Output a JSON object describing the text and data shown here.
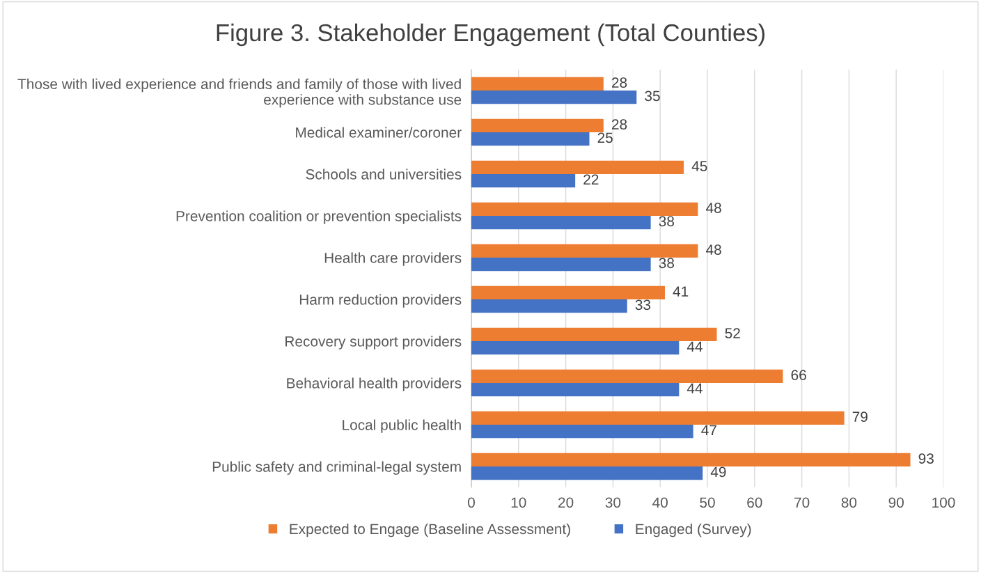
{
  "chart_data": {
    "type": "bar",
    "orientation": "horizontal",
    "title": "Figure 3. Stakeholder Engagement (Total Counties)",
    "categories": [
      "Those with lived experience and friends and family of those with lived experience with substance use",
      "Medical examiner/coroner",
      "Schools and universities",
      "Prevention coalition or prevention specialists",
      "Health care providers",
      "Harm reduction providers",
      "Recovery support providers",
      "Behavioral health providers",
      "Local public health",
      "Public safety and criminal-legal system"
    ],
    "series": [
      {
        "name": "Expected to Engage (Baseline Assessment)",
        "color": "#ed7d31",
        "values": [
          28,
          28,
          45,
          48,
          48,
          41,
          52,
          66,
          79,
          93
        ]
      },
      {
        "name": "Engaged (Survey)",
        "color": "#4472c4",
        "values": [
          35,
          25,
          22,
          38,
          38,
          33,
          44,
          44,
          47,
          49
        ]
      }
    ],
    "xlim": [
      0,
      100
    ],
    "xticks": [
      0,
      10,
      20,
      30,
      40,
      50,
      60,
      70,
      80,
      90,
      100
    ],
    "grid": "x",
    "legend": "bottom",
    "data_labels": true
  }
}
